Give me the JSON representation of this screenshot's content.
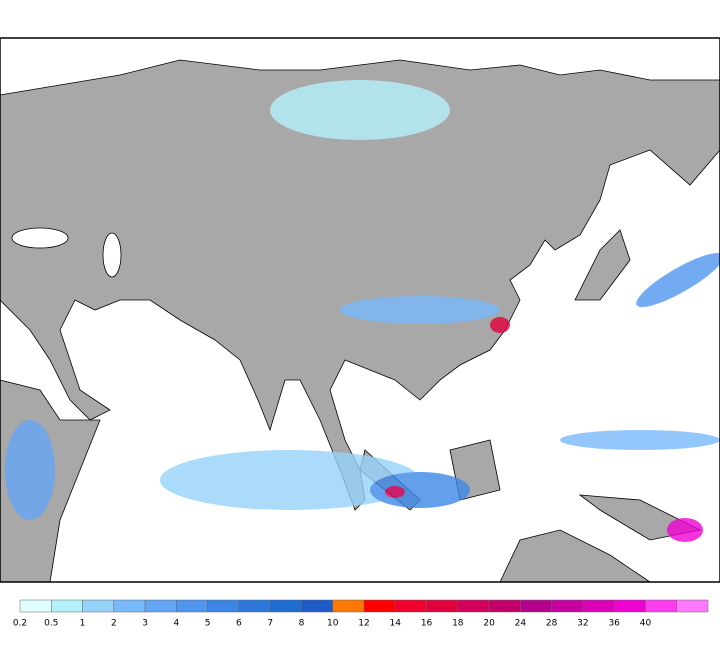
{
  "colorbar": {
    "levels": [
      0.2,
      0.5,
      1,
      2,
      3,
      4,
      5,
      6,
      7,
      8,
      10,
      12,
      14,
      16,
      18,
      20,
      24,
      28,
      32,
      36,
      40
    ],
    "colors": [
      "#e1ffff",
      "#b4f0fa",
      "#96d2fa",
      "#78b9fa",
      "#64a5f5",
      "#5096f0",
      "#3c87e6",
      "#2d78dc",
      "#1e6ed2",
      "#1e5ac8",
      "#ff7800",
      "#ff0000",
      "#f0002d",
      "#e1003c",
      "#d2005a",
      "#c30069",
      "#b4008c",
      "#c800a0",
      "#dc00b9",
      "#f000d2",
      "#ff3cf0",
      "#ff78ff"
    ]
  }
}
